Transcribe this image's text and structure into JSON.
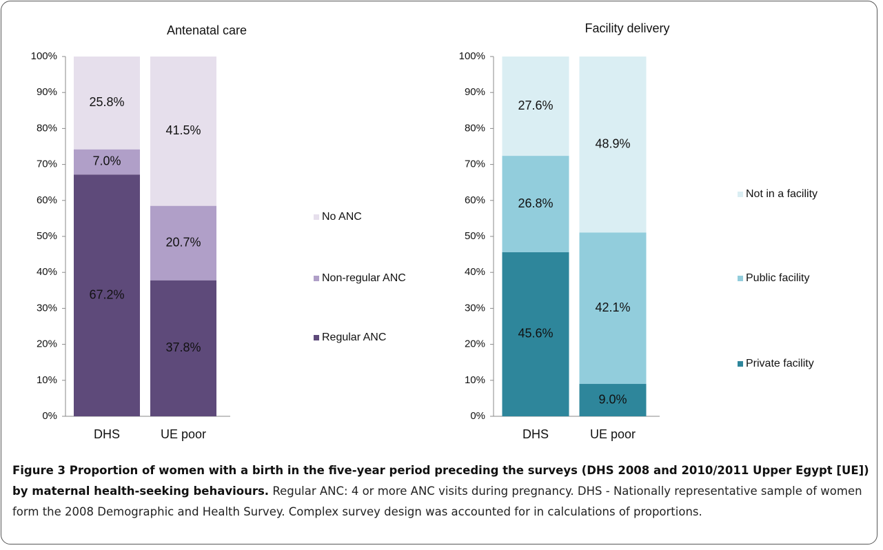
{
  "chart_data": [
    {
      "type": "bar",
      "stacked": true,
      "title": "Antenatal care",
      "categories": [
        "DHS",
        "UE poor"
      ],
      "series": [
        {
          "name": "Regular ANC",
          "color": "#5e4a7a",
          "values": [
            67.2,
            37.8
          ],
          "value_labels": [
            "67.2%",
            "37.8%"
          ]
        },
        {
          "name": "Non-regular ANC",
          "color": "#b09fc8",
          "values": [
            7.0,
            20.7
          ],
          "value_labels": [
            "7.0%",
            "20.7%"
          ]
        },
        {
          "name": "No ANC",
          "color": "#e6dfec",
          "values": [
            25.8,
            41.5
          ],
          "value_labels": [
            "25.8%",
            "41.5%"
          ]
        }
      ],
      "ylim": [
        0,
        100
      ],
      "yticks": [
        {
          "value": 0,
          "label": "0%"
        },
        {
          "value": 10,
          "label": "10%"
        },
        {
          "value": 20,
          "label": "20%"
        },
        {
          "value": 30,
          "label": "30%"
        },
        {
          "value": 40,
          "label": "40%"
        },
        {
          "value": 50,
          "label": "50%"
        },
        {
          "value": 60,
          "label": "60%"
        },
        {
          "value": 70,
          "label": "70%"
        },
        {
          "value": 80,
          "label": "80%"
        },
        {
          "value": 90,
          "label": "90%"
        },
        {
          "value": 100,
          "label": "100%"
        }
      ],
      "legend": "right"
    },
    {
      "type": "bar",
      "stacked": true,
      "title": "Facility delivery",
      "categories": [
        "DHS",
        "UE poor"
      ],
      "series": [
        {
          "name": "Private facility",
          "color": "#2e869b",
          "values": [
            45.6,
            9.0
          ],
          "value_labels": [
            "45.6%",
            "9.0%"
          ]
        },
        {
          "name": "Public facility",
          "color": "#92cddc",
          "values": [
            26.8,
            42.1
          ],
          "value_labels": [
            "26.8%",
            "42.1%"
          ]
        },
        {
          "name": "Not in a facility",
          "color": "#daeef3",
          "values": [
            27.6,
            48.9
          ],
          "value_labels": [
            "27.6%",
            "48.9%"
          ]
        }
      ],
      "ylim": [
        0,
        100
      ],
      "yticks": [
        {
          "value": 0,
          "label": "0%"
        },
        {
          "value": 10,
          "label": "10%"
        },
        {
          "value": 20,
          "label": "20%"
        },
        {
          "value": 30,
          "label": "30%"
        },
        {
          "value": 40,
          "label": "40%"
        },
        {
          "value": 50,
          "label": "50%"
        },
        {
          "value": 60,
          "label": "60%"
        },
        {
          "value": 70,
          "label": "70%"
        },
        {
          "value": 80,
          "label": "80%"
        },
        {
          "value": 90,
          "label": "90%"
        },
        {
          "value": 100,
          "label": "100%"
        }
      ],
      "legend": "right"
    }
  ],
  "caption": {
    "bold": "Figure 3 Proportion of women with a birth in the five-year period preceding the surveys (DHS 2008 and 2010/2011 Upper Egypt [UE]) by maternal health-seeking behaviours.",
    "text": "Regular ANC: 4 or more ANC visits during pregnancy. DHS - Nationally representative sample of women form the 2008 Demographic and Health Survey. Complex survey design was accounted for in calculations of proportions."
  }
}
